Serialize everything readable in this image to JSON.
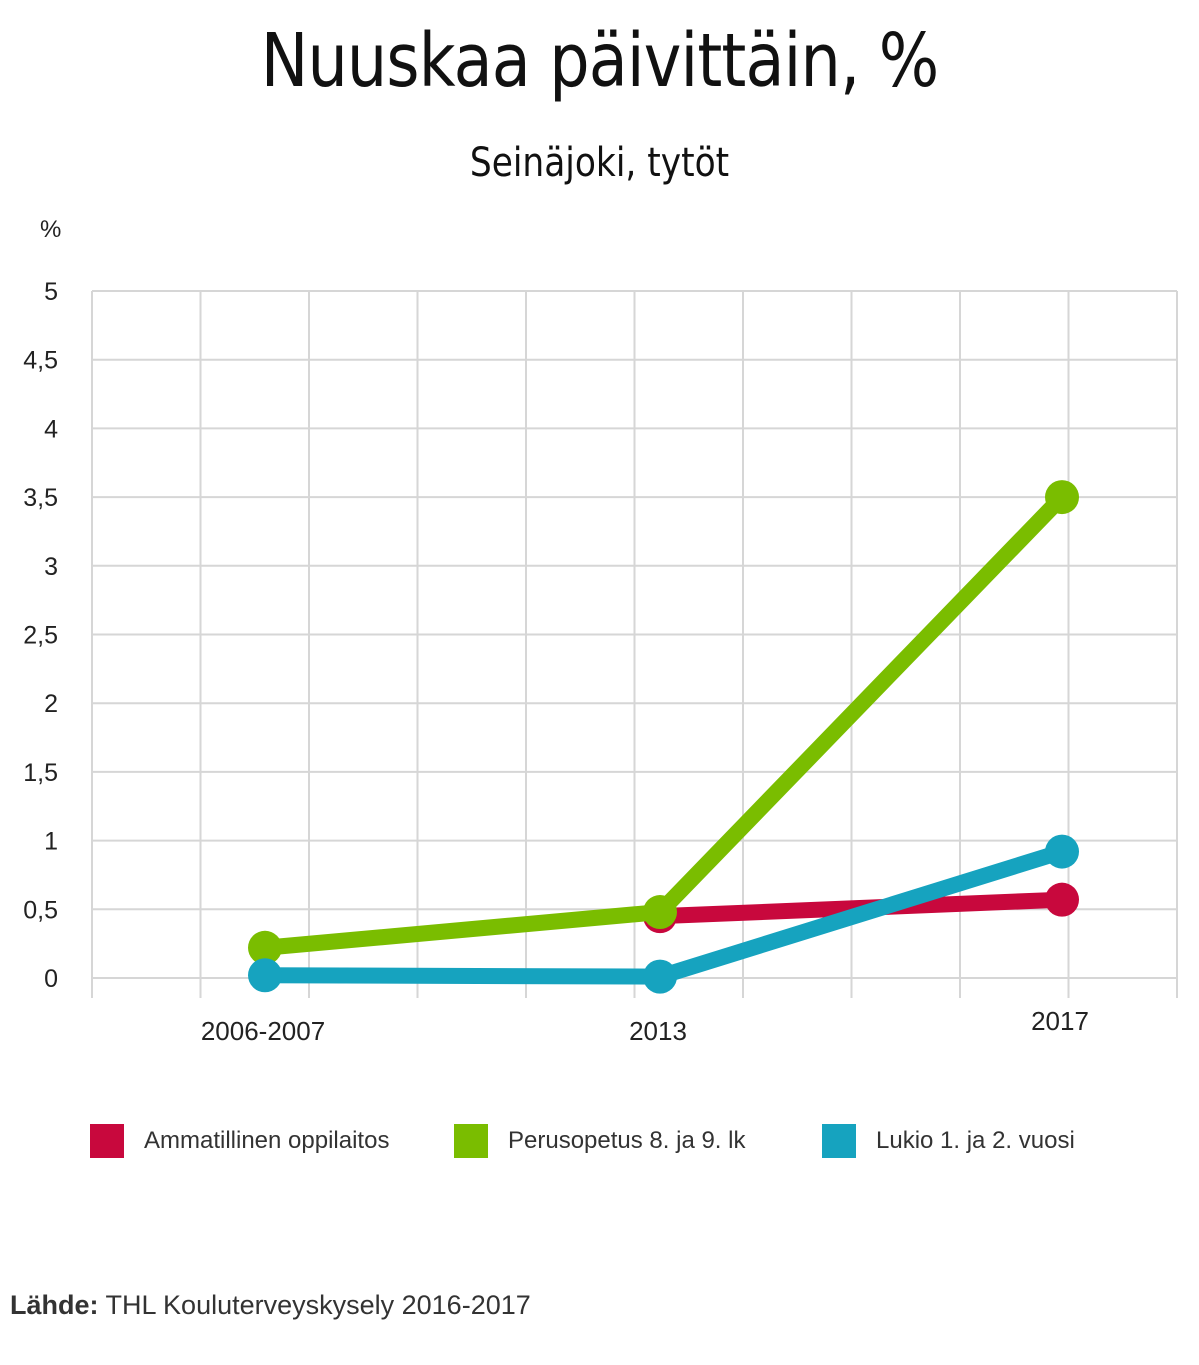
{
  "chart_data": {
    "type": "line",
    "title": "Nuuskaa päivittäin, %",
    "subtitle": "Seinäjoki, tytöt",
    "ylabel": "%",
    "xlabel": "",
    "categories": [
      "2006-2007",
      "2013",
      "2017"
    ],
    "ylim": [
      0,
      5
    ],
    "yticks": [
      "0",
      "0,5",
      "1",
      "1,5",
      "2",
      "2,5",
      "3",
      "3,5",
      "4",
      "4,5",
      "5"
    ],
    "grid": true,
    "legend_position": "bottom",
    "series": [
      {
        "name": "Ammatillinen oppilaitos",
        "color": "#c8083d",
        "values": [
          null,
          0.45,
          0.57
        ]
      },
      {
        "name": "Perusopetus 8. ja 9. lk",
        "color": "#7abd00",
        "values": [
          0.22,
          0.48,
          3.5
        ]
      },
      {
        "name": "Lukio 1. ja 2. vuosi",
        "color": "#16a3bf",
        "values": [
          0.02,
          0.01,
          0.92
        ]
      }
    ]
  },
  "source": {
    "label": "Lähde:",
    "text": "THL Kouluterveyskysely 2016-2017"
  }
}
